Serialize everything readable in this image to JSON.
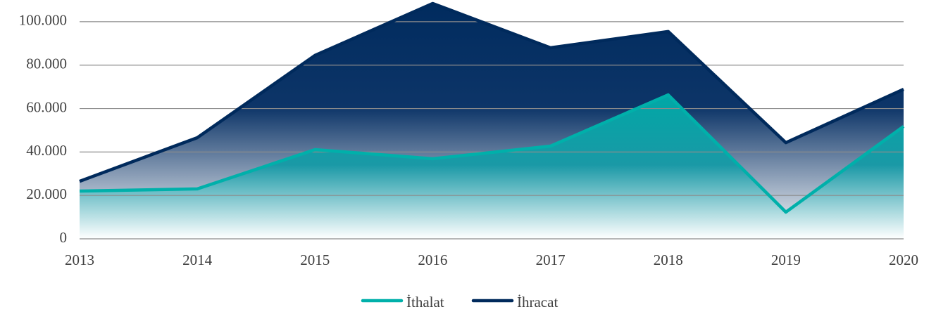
{
  "chart_data": {
    "type": "area",
    "categories": [
      "2013",
      "2014",
      "2015",
      "2016",
      "2017",
      "2018",
      "2019",
      "2020"
    ],
    "series": [
      {
        "name": "İthalat",
        "color": "#00b0aa",
        "values": [
          22000,
          23000,
          41100,
          36900,
          42700,
          66300,
          12300,
          51800
        ]
      },
      {
        "name": "İhracat",
        "color": "#002a5c",
        "values": [
          26500,
          46600,
          84500,
          108400,
          88000,
          95500,
          44300,
          68900
        ]
      }
    ],
    "ylim": [
      0,
      110000
    ],
    "yticks": [
      0,
      {
        "value": 20000,
        "label": "20.000"
      },
      {
        "value": 40000,
        "label": "40.000"
      },
      {
        "value": 60000,
        "label": "60.000"
      },
      {
        "value": 80000,
        "label": "80.000"
      },
      {
        "value": 100000,
        "label": "100.000"
      }
    ],
    "grid": true,
    "legend": "bottom"
  }
}
